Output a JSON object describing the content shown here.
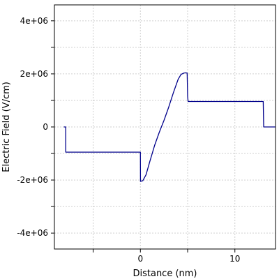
{
  "chart_data": {
    "type": "line",
    "title": "",
    "xlabel": "Distance (nm)",
    "ylabel": "Electric Field (V/cm)",
    "xlim": [
      -9.1,
      14.3
    ],
    "ylim": [
      -4600000.0,
      4600000.0
    ],
    "grid": true,
    "x_ticks": [
      {
        "value": -5,
        "label": ""
      },
      {
        "value": 0,
        "label": "0"
      },
      {
        "value": 5,
        "label": ""
      },
      {
        "value": 10,
        "label": "10"
      }
    ],
    "y_ticks": [
      {
        "value": 4000000,
        "label": "4e+06"
      },
      {
        "value": 3000000,
        "label": ""
      },
      {
        "value": 2000000,
        "label": "2e+06"
      },
      {
        "value": 1000000,
        "label": ""
      },
      {
        "value": 0,
        "label": "0"
      },
      {
        "value": -1000000,
        "label": ""
      },
      {
        "value": -2000000,
        "label": "-2e+06"
      },
      {
        "value": -3000000,
        "label": ""
      },
      {
        "value": -4000000,
        "label": "-4e+06"
      }
    ],
    "line_color": "#00008b",
    "series": [
      {
        "x": [
          -8.1,
          -7.9,
          -7.9,
          -5.0,
          -2.0,
          0.0,
          0.01,
          0.25,
          0.6,
          1.0,
          1.5,
          2.0,
          2.5,
          3.0,
          3.5,
          4.0,
          4.3,
          4.6,
          4.8,
          4.95,
          5.0,
          5.05,
          7.0,
          10.0,
          13.0,
          13.05,
          13.1,
          14.3
        ],
        "y": [
          0,
          0,
          -950000,
          -950000,
          -950000,
          -950000,
          -2050000,
          -2030000,
          -1800000,
          -1300000,
          -700000,
          -200000,
          250000,
          750000,
          1300000,
          1800000,
          1980000,
          2030000,
          2040000,
          2030000,
          1150000,
          960000,
          960000,
          960000,
          960000,
          0,
          0,
          0
        ]
      }
    ]
  }
}
